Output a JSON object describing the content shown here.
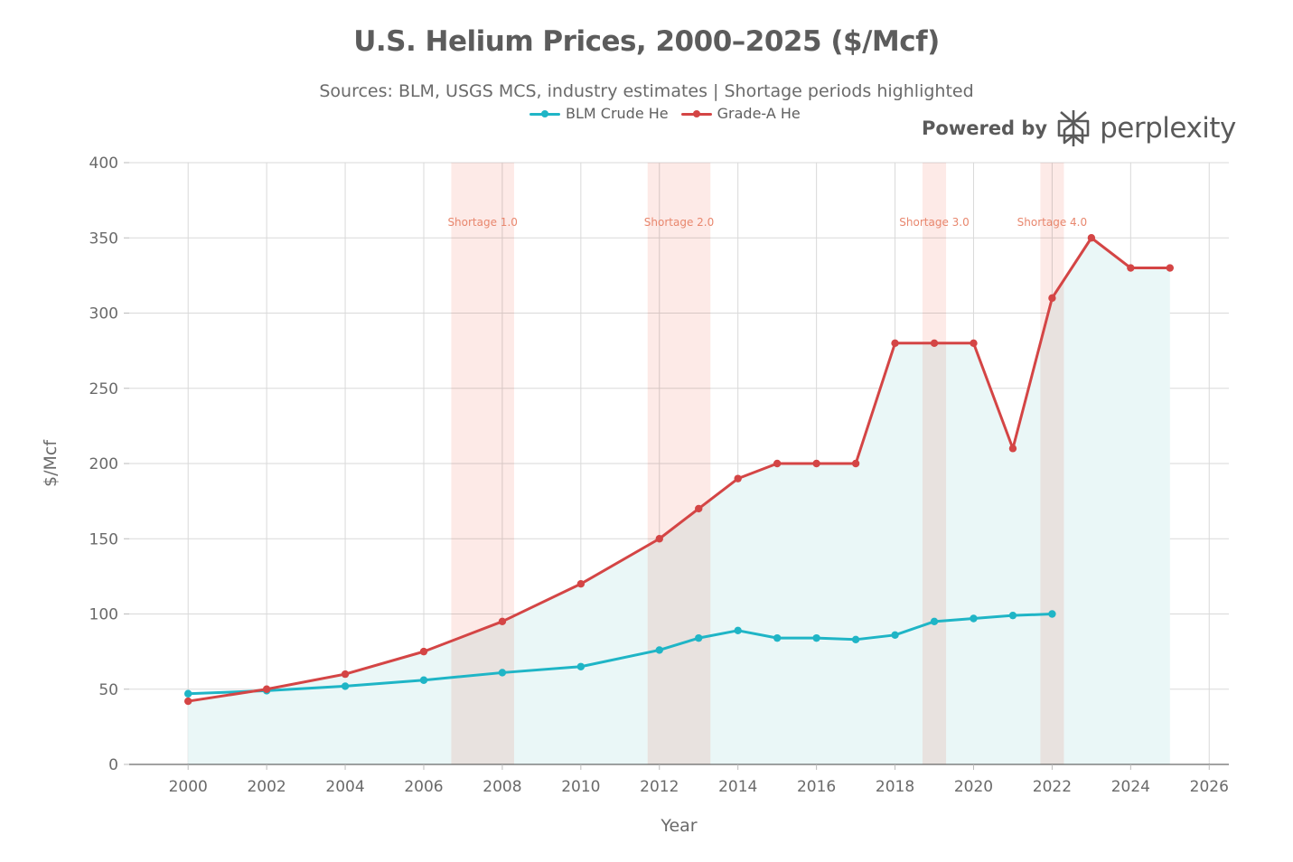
{
  "header": {
    "title": "U.S. Helium Prices, 2000–2025 ($/Mcf)",
    "subtitle": "Sources: BLM, USGS MCS, industry estimates | Shortage periods highlighted"
  },
  "brand": {
    "prefix": "Powered by",
    "name": "perplexity",
    "icon": "perplexity-logo-icon"
  },
  "legend": {
    "items": [
      "BLM Crude He",
      "Grade-A He"
    ]
  },
  "chart_data": {
    "type": "line",
    "title": "U.S. Helium Prices, 2000–2025 ($/Mcf)",
    "subtitle": "Sources: BLM, USGS MCS, industry estimates | Shortage periods highlighted",
    "xlabel": "Year",
    "ylabel": "$/Mcf",
    "xlim": [
      1998.5,
      2026.5
    ],
    "ylim": [
      0,
      400
    ],
    "xticks": [
      2000,
      2002,
      2004,
      2006,
      2008,
      2010,
      2012,
      2014,
      2016,
      2018,
      2020,
      2022,
      2024,
      2026
    ],
    "yticks": [
      0,
      50,
      100,
      150,
      200,
      250,
      300,
      350,
      400
    ],
    "grid": true,
    "legend_position": "top-center",
    "series": [
      {
        "name": "BLM Crude He",
        "color": "#1fb5c6",
        "fill": true,
        "x": [
          2000,
          2002,
          2004,
          2006,
          2008,
          2010,
          2012,
          2013,
          2014,
          2015,
          2016,
          2017,
          2018,
          2019,
          2020,
          2021,
          2022
        ],
        "y": [
          47,
          49,
          52,
          56,
          61,
          65,
          76,
          84,
          89,
          84,
          84,
          83,
          86,
          95,
          97,
          99,
          100
        ]
      },
      {
        "name": "Grade-A He",
        "color": "#d44545",
        "fill": true,
        "x": [
          2000,
          2002,
          2004,
          2006,
          2008,
          2010,
          2012,
          2013,
          2014,
          2015,
          2016,
          2017,
          2018,
          2019,
          2020,
          2021,
          2022,
          2023,
          2024,
          2025
        ],
        "y": [
          42,
          50,
          60,
          75,
          95,
          120,
          150,
          170,
          190,
          200,
          200,
          200,
          280,
          280,
          280,
          210,
          310,
          350,
          330,
          330
        ]
      }
    ],
    "shortages": [
      {
        "label": "Shortage 1.0",
        "start": 2006.7,
        "end": 2008.3
      },
      {
        "label": "Shortage 2.0",
        "start": 2011.7,
        "end": 2013.3
      },
      {
        "label": "Shortage 3.0",
        "start": 2018.7,
        "end": 2019.3
      },
      {
        "label": "Shortage 4.0",
        "start": 2021.7,
        "end": 2022.3
      }
    ],
    "colors": {
      "grid": "#d9d9d9",
      "shortage_band": "#fde3df",
      "shortage_label": "#e8876e",
      "area_fill": "#eaf7f7",
      "axis_text": "#6a6a6a"
    }
  }
}
